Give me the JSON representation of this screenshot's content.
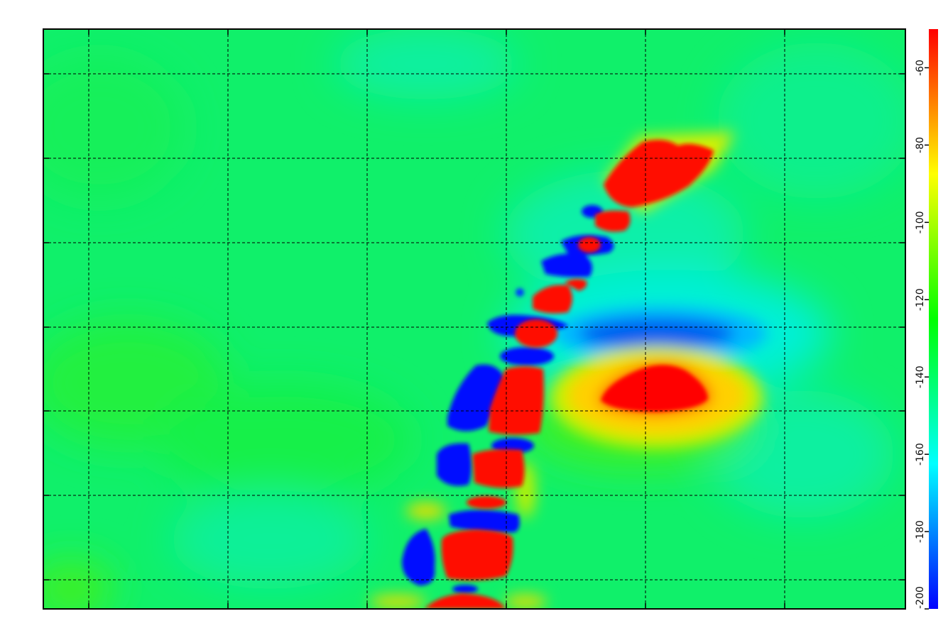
{
  "chart_data": {
    "type": "heatmap",
    "title": "",
    "xlabel": "",
    "ylabel": "",
    "grid": true,
    "colormap": [
      "#0000ff",
      "#00ffff",
      "#00ff00",
      "#ffff00",
      "#ff0000"
    ],
    "colorbar": {
      "range": [
        -200,
        -50
      ],
      "ticks": [
        -60,
        -80,
        -100,
        -120,
        -140,
        -160,
        -180,
        -200
      ],
      "tick_labels": [
        "-60",
        "-80",
        "-100",
        "-120",
        "-140",
        "-160",
        "-180",
        "-200"
      ],
      "position": "right"
    }
  }
}
